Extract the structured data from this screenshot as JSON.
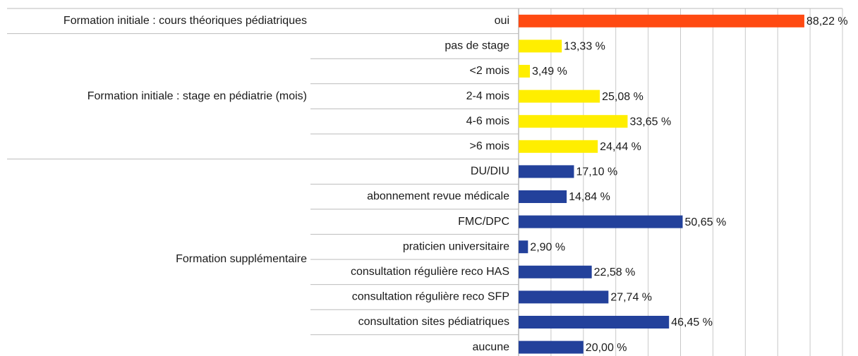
{
  "chart_data": {
    "type": "bar",
    "orientation": "horizontal",
    "groups": [
      {
        "name": "Formation initiale : cours théoriques pédiatriques",
        "color": "#ff4a12",
        "categories": [
          "oui"
        ],
        "values": [
          88.22
        ],
        "value_labels": [
          "88,22 %"
        ]
      },
      {
        "name": "Formation initiale : stage en pédiatrie (mois)",
        "color": "#ffee00",
        "categories": [
          "pas de stage",
          "<2 mois",
          "2-4 mois",
          "4-6 mois",
          ">6 mois"
        ],
        "values": [
          13.33,
          3.49,
          25.08,
          33.65,
          24.44
        ],
        "value_labels": [
          "13,33 %",
          "3,49 %",
          "25,08 %",
          "33,65 %",
          "24,44 %"
        ]
      },
      {
        "name": "Formation supplémentaire",
        "color": "#23419b",
        "categories": [
          "DU/DIU",
          "abonnement revue médicale",
          "FMC/DPC",
          "praticien universitaire",
          "consultation régulière reco HAS",
          "consultation régulière reco SFP",
          "consultation sites pédiatriques",
          "aucune"
        ],
        "values": [
          17.1,
          14.84,
          50.65,
          2.9,
          22.58,
          27.74,
          46.45,
          20.0
        ],
        "value_labels": [
          "17,10 %",
          "14,84 %",
          "50,65 %",
          "2,90 %",
          "22,58 %",
          "27,74 %",
          "46,45 %",
          "20,00 %"
        ]
      }
    ],
    "xlim": [
      0,
      100
    ],
    "xticks": [
      0,
      10,
      20,
      30,
      40,
      50,
      60,
      70,
      80,
      90,
      100
    ],
    "grid": true
  }
}
